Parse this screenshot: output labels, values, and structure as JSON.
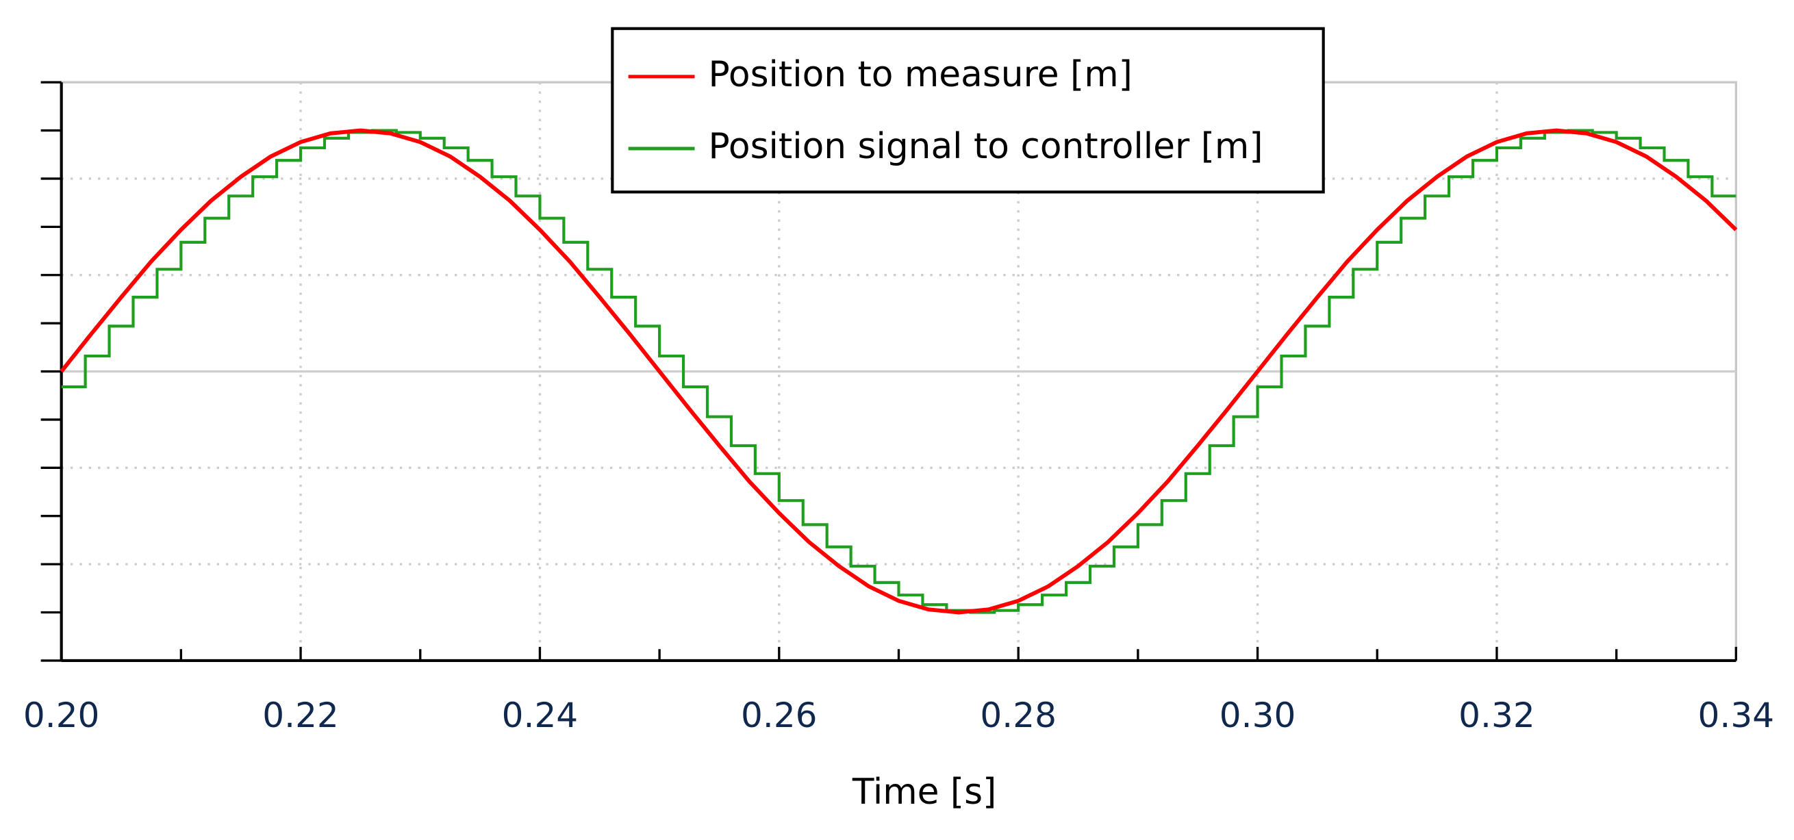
{
  "chart_data": {
    "type": "line",
    "xlabel": "Time [s]",
    "xlim": [
      0.2,
      0.34
    ],
    "xticks": [
      {
        "value": 0.2,
        "label": "0.20"
      },
      {
        "value": 0.22,
        "label": "0.22"
      },
      {
        "value": 0.24,
        "label": "0.24"
      },
      {
        "value": 0.26,
        "label": "0.26"
      },
      {
        "value": 0.28,
        "label": "0.28"
      },
      {
        "value": 0.3,
        "label": "0.30"
      },
      {
        "value": 0.32,
        "label": "0.32"
      },
      {
        "value": 0.34,
        "label": "0.34"
      }
    ],
    "xticks_minor": [
      0.21,
      0.23,
      0.25,
      0.27,
      0.29,
      0.31,
      0.33
    ],
    "ylim": [
      -3,
      3
    ],
    "yticks": [
      -3,
      -2,
      -1,
      0,
      1,
      2,
      3
    ],
    "yticks_minor": [
      -2.5,
      -1.5,
      -0.5,
      0.5,
      1.5,
      2.5
    ],
    "ytick_labels": false,
    "grid": true,
    "legend": "top-center",
    "series": [
      {
        "name": "Position to measure [m]",
        "color": "#ff0000",
        "step": false,
        "x": [
          0.2,
          0.2025,
          0.205,
          0.2075,
          0.21,
          0.2125,
          0.215,
          0.2175,
          0.22,
          0.2225,
          0.225,
          0.2275,
          0.23,
          0.2325,
          0.235,
          0.2375,
          0.24,
          0.2425,
          0.245,
          0.2475,
          0.25,
          0.2525,
          0.255,
          0.2575,
          0.26,
          0.2625,
          0.265,
          0.2675,
          0.27,
          0.2725,
          0.275,
          0.2775,
          0.28,
          0.2825,
          0.285,
          0.2875,
          0.29,
          0.2925,
          0.295,
          0.2975,
          0.3,
          0.3025,
          0.305,
          0.3075,
          0.31,
          0.3125,
          0.315,
          0.3175,
          0.32,
          0.3225,
          0.325,
          0.3275,
          0.33,
          0.3325,
          0.335,
          0.3375,
          0.34
        ],
        "values": [
          0,
          0.39,
          0.77,
          1.14,
          1.47,
          1.77,
          2.02,
          2.23,
          2.38,
          2.47,
          2.5,
          2.47,
          2.38,
          2.23,
          2.02,
          1.77,
          1.47,
          1.14,
          0.77,
          0.39,
          0,
          -0.39,
          -0.77,
          -1.14,
          -1.47,
          -1.77,
          -2.02,
          -2.23,
          -2.38,
          -2.47,
          -2.5,
          -2.47,
          -2.38,
          -2.23,
          -2.02,
          -1.77,
          -1.47,
          -1.14,
          -0.77,
          -0.39,
          0,
          0.39,
          0.77,
          1.14,
          1.47,
          1.77,
          2.02,
          2.23,
          2.38,
          2.47,
          2.5,
          2.47,
          2.38,
          2.23,
          2.02,
          1.77,
          1.47
        ]
      },
      {
        "name": "Position signal to controller [m]",
        "color": "#1f9e1f",
        "step": true,
        "x": [
          0.2,
          0.202,
          0.204,
          0.206,
          0.208,
          0.21,
          0.212,
          0.214,
          0.216,
          0.218,
          0.22,
          0.222,
          0.224,
          0.226,
          0.228,
          0.23,
          0.232,
          0.234,
          0.236,
          0.238,
          0.24,
          0.242,
          0.244,
          0.246,
          0.248,
          0.25,
          0.252,
          0.254,
          0.256,
          0.258,
          0.26,
          0.262,
          0.264,
          0.266,
          0.268,
          0.27,
          0.272,
          0.274,
          0.276,
          0.278,
          0.28,
          0.282,
          0.284,
          0.286,
          0.288,
          0.29,
          0.292,
          0.294,
          0.296,
          0.298,
          0.3,
          0.302,
          0.304,
          0.306,
          0.308,
          0.31,
          0.312,
          0.314,
          0.316,
          0.318,
          0.32,
          0.322,
          0.324,
          0.326,
          0.328,
          0.33,
          0.332,
          0.334,
          0.336,
          0.338
        ],
        "values": [
          -0.16,
          0.16,
          0.47,
          0.77,
          1.06,
          1.34,
          1.59,
          1.82,
          2.02,
          2.19,
          2.32,
          2.42,
          2.48,
          2.5,
          2.48,
          2.42,
          2.32,
          2.19,
          2.02,
          1.82,
          1.59,
          1.34,
          1.06,
          0.77,
          0.47,
          0.16,
          -0.16,
          -0.47,
          -0.77,
          -1.06,
          -1.34,
          -1.59,
          -1.82,
          -2.02,
          -2.19,
          -2.32,
          -2.42,
          -2.48,
          -2.5,
          -2.48,
          -2.42,
          -2.32,
          -2.19,
          -2.02,
          -1.82,
          -1.59,
          -1.34,
          -1.06,
          -0.77,
          -0.47,
          -0.16,
          0.16,
          0.47,
          0.77,
          1.06,
          1.34,
          1.59,
          1.82,
          2.02,
          2.19,
          2.32,
          2.42,
          2.48,
          2.5,
          2.48,
          2.42,
          2.32,
          2.19,
          2.02,
          1.82
        ]
      }
    ]
  }
}
